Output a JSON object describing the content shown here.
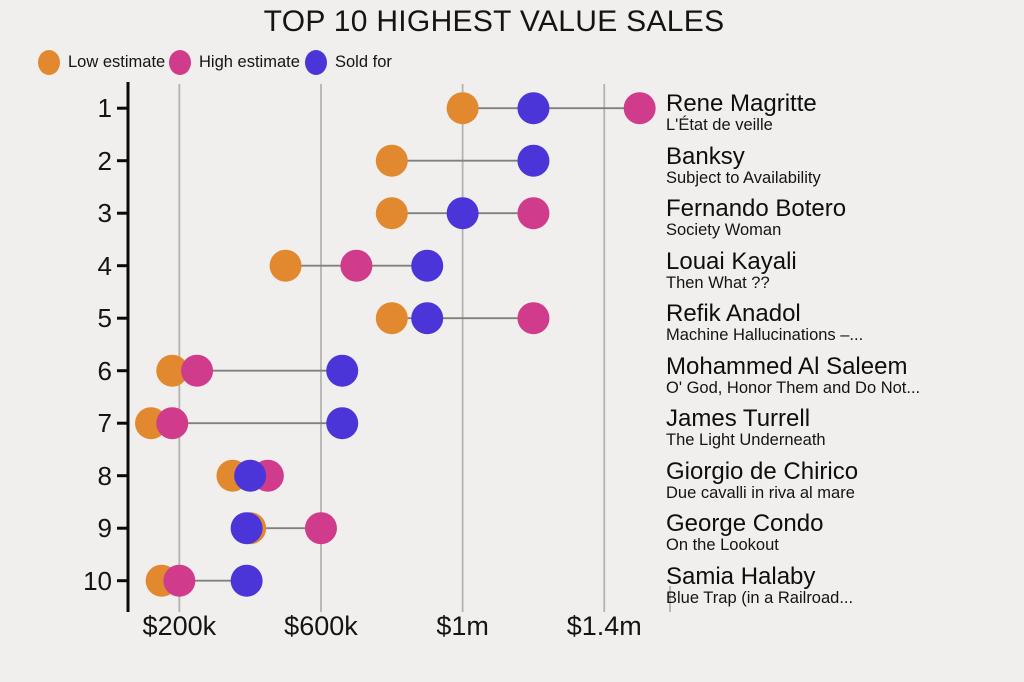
{
  "chart_data": {
    "type": "scatter",
    "subtype": "dumbbell-dot-plot",
    "title": "TOP 10 HIGHEST VALUE SALES",
    "values_unit": "thousands of USD",
    "x_axis": {
      "xlim_thousands": [
        55,
        1580
      ],
      "grid": true,
      "ticks": [
        {
          "value_thousands": 200,
          "label": "$200k"
        },
        {
          "value_thousands": 600,
          "label": "$600k"
        },
        {
          "value_thousands": 1000,
          "label": "$1m"
        },
        {
          "value_thousands": 1400,
          "label": "$1.4m"
        }
      ]
    },
    "y_axis": {
      "ranks": [
        1,
        2,
        3,
        4,
        5,
        6,
        7,
        8,
        9,
        10
      ]
    },
    "legend_position": "top-left",
    "series": [
      {
        "key": "low",
        "name": "Low estimate",
        "color": "#e2892f"
      },
      {
        "key": "high",
        "name": "High estimate",
        "color": "#d03c8b"
      },
      {
        "key": "sold",
        "name": "Sold for",
        "color": "#4c35d8"
      }
    ],
    "rows": [
      {
        "rank": 1,
        "artist": "Rene Magritte",
        "work": "L'État de veille",
        "low": 1000,
        "high": 1500,
        "sold": 1200
      },
      {
        "rank": 2,
        "artist": "Banksy",
        "work": "Subject to Availability",
        "low": 800,
        "high": null,
        "sold": 1200
      },
      {
        "rank": 3,
        "artist": "Fernando Botero",
        "work": "Society Woman",
        "low": 800,
        "high": 1200,
        "sold": 1000
      },
      {
        "rank": 4,
        "artist": "Louai Kayali",
        "work": "Then What ??",
        "low": 500,
        "high": 700,
        "sold": 900
      },
      {
        "rank": 5,
        "artist": "Refik Anadol",
        "work": "Machine Hallucinations –...",
        "low": 800,
        "high": 1200,
        "sold": 900
      },
      {
        "rank": 6,
        "artist": "Mohammed Al Saleem",
        "work": "O' God, Honor Them and Do Not...",
        "low": 180,
        "high": 250,
        "sold": 660
      },
      {
        "rank": 7,
        "artist": "James Turrell",
        "work": "The Light Underneath",
        "low": 120,
        "high": 180,
        "sold": 660
      },
      {
        "rank": 8,
        "artist": "Giorgio de Chirico",
        "work": "Due cavalli in riva al mare",
        "low": 350,
        "high": 450,
        "sold": 400
      },
      {
        "rank": 9,
        "artist": "George Condo",
        "work": "On the Lookout",
        "low": 400,
        "high": 600,
        "sold": 390
      },
      {
        "rank": 10,
        "artist": "Samia Halaby",
        "work": "Blue Trap (in a Railroad...",
        "low": 150,
        "high": 200,
        "sold": 390
      }
    ]
  },
  "colors": {
    "background": "#f0efed",
    "low": "#e2892f",
    "high": "#d03c8b",
    "sold": "#4c35d8",
    "gridline": "#b3b3b3",
    "connector": "#808080",
    "axis": "#0a0a0a",
    "text": "#141414"
  }
}
